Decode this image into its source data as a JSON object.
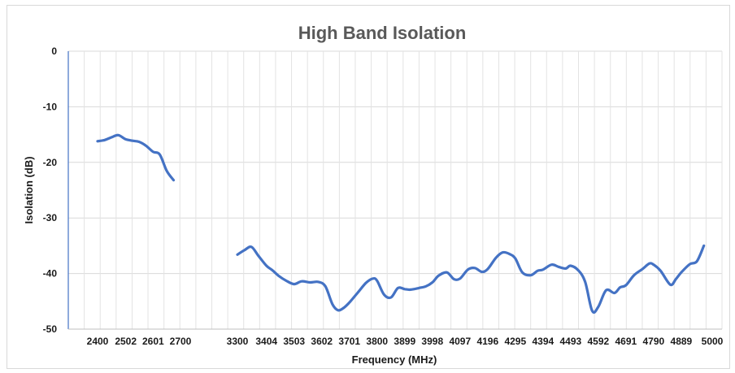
{
  "chart_data": {
    "type": "line",
    "title": "High Band Isolation",
    "xlabel": "Frequency (MHz)",
    "ylabel": "Isolation (dB)",
    "ylim": [
      -50,
      0
    ],
    "yticks": [
      0,
      -10,
      -20,
      -30,
      -40,
      -50
    ],
    "x_categories": [
      "2400",
      "2502",
      "2601",
      "2700",
      "3300",
      "3404",
      "3503",
      "3602",
      "3701",
      "3800",
      "3899",
      "3998",
      "4097",
      "4196",
      "4295",
      "4394",
      "4493",
      "4592",
      "4691",
      "4790",
      "4889",
      "5000"
    ],
    "grid": "major gridlines on both axes",
    "legend": "none",
    "line_color": "#4472C4",
    "series": [
      {
        "segments": [
          [
            [
              2400,
              -16.2
            ],
            [
              2425,
              -16.0
            ],
            [
              2450,
              -15.5
            ],
            [
              2475,
              -15.1
            ],
            [
              2500,
              -15.8
            ],
            [
              2525,
              -16.1
            ],
            [
              2550,
              -16.3
            ],
            [
              2575,
              -17.0
            ],
            [
              2601,
              -18.1
            ],
            [
              2625,
              -18.6
            ],
            [
              2650,
              -21.5
            ],
            [
              2675,
              -23.2
            ]
          ],
          [
            [
              3300,
              -36.6
            ],
            [
              3325,
              -35.8
            ],
            [
              3350,
              -35.2
            ],
            [
              3375,
              -36.8
            ],
            [
              3404,
              -38.6
            ],
            [
              3425,
              -39.4
            ],
            [
              3450,
              -40.5
            ],
            [
              3475,
              -41.3
            ],
            [
              3503,
              -41.9
            ],
            [
              3530,
              -41.4
            ],
            [
              3560,
              -41.6
            ],
            [
              3590,
              -41.5
            ],
            [
              3615,
              -42.3
            ],
            [
              3640,
              -45.5
            ],
            [
              3660,
              -46.6
            ],
            [
              3680,
              -46.2
            ],
            [
              3701,
              -45.2
            ],
            [
              3730,
              -43.5
            ],
            [
              3760,
              -41.7
            ],
            [
              3785,
              -40.9
            ],
            [
              3800,
              -41.3
            ],
            [
              3825,
              -43.8
            ],
            [
              3850,
              -44.3
            ],
            [
              3875,
              -42.6
            ],
            [
              3899,
              -42.8
            ],
            [
              3920,
              -42.9
            ],
            [
              3950,
              -42.6
            ],
            [
              3975,
              -42.3
            ],
            [
              3998,
              -41.6
            ],
            [
              4020,
              -40.4
            ],
            [
              4050,
              -39.8
            ],
            [
              4075,
              -41.0
            ],
            [
              4097,
              -40.9
            ],
            [
              4125,
              -39.3
            ],
            [
              4150,
              -39.0
            ],
            [
              4175,
              -39.7
            ],
            [
              4196,
              -39.2
            ],
            [
              4225,
              -37.2
            ],
            [
              4250,
              -36.2
            ],
            [
              4275,
              -36.5
            ],
            [
              4295,
              -37.3
            ],
            [
              4320,
              -39.8
            ],
            [
              4350,
              -40.3
            ],
            [
              4375,
              -39.5
            ],
            [
              4394,
              -39.3
            ],
            [
              4425,
              -38.4
            ],
            [
              4450,
              -38.8
            ],
            [
              4475,
              -39.1
            ],
            [
              4493,
              -38.6
            ],
            [
              4520,
              -39.4
            ],
            [
              4545,
              -41.5
            ],
            [
              4570,
              -46.7
            ],
            [
              4592,
              -46.0
            ],
            [
              4620,
              -43.0
            ],
            [
              4650,
              -43.5
            ],
            [
              4670,
              -42.5
            ],
            [
              4691,
              -42.1
            ],
            [
              4720,
              -40.3
            ],
            [
              4750,
              -39.2
            ],
            [
              4775,
              -38.2
            ],
            [
              4790,
              -38.4
            ],
            [
              4815,
              -39.5
            ],
            [
              4850,
              -42.0
            ],
            [
              4870,
              -41.0
            ],
            [
              4889,
              -39.8
            ],
            [
              4920,
              -38.3
            ],
            [
              4945,
              -37.8
            ],
            [
              4970,
              -35.0
            ]
          ]
        ]
      }
    ]
  }
}
